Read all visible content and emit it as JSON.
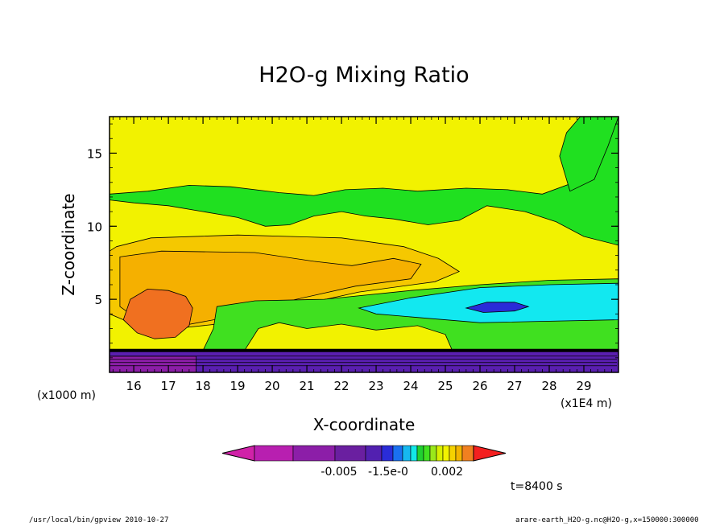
{
  "chart_data": {
    "type": "heatmap",
    "title": "H2O-g Mixing Ratio",
    "xlabel": "X-coordinate",
    "ylabel": "Z-coordinate",
    "x_unit_label": "(x1E4 m)",
    "y_unit_label": "(x1000 m)",
    "xlim": [
      15.3,
      30.0
    ],
    "ylim": [
      0,
      17.5
    ],
    "x_ticks": [
      16,
      17,
      18,
      19,
      20,
      21,
      22,
      23,
      24,
      25,
      26,
      27,
      28,
      29
    ],
    "y_ticks": [
      5,
      10,
      15
    ],
    "colorbar_labels": [
      "-0.005",
      "-1.5e-0",
      "0.002"
    ],
    "colorbar_colors": [
      "#d022a8",
      "#b81fb0",
      "#8c1ea8",
      "#6a1fa0",
      "#5220b0",
      "#2a2cd8",
      "#1a70f0",
      "#16b8f0",
      "#12e8e8",
      "#20d030",
      "#40e020",
      "#9ae81a",
      "#d8f000",
      "#f2f200",
      "#f5d200",
      "#f2b400",
      "#f08020",
      "#f42020"
    ],
    "regions": [
      {
        "color": "#f2f200",
        "level": "background",
        "poly": [
          [
            15.3,
            0.4
          ],
          [
            30,
            0.4
          ],
          [
            30,
            17.5
          ],
          [
            15.3,
            17.5
          ]
        ]
      },
      {
        "color": "#20e020",
        "level": "upper band",
        "poly": [
          [
            15.3,
            12.2
          ],
          [
            16.4,
            12.4
          ],
          [
            17.6,
            12.8
          ],
          [
            18.8,
            12.7
          ],
          [
            20.2,
            12.3
          ],
          [
            21.2,
            12.1
          ],
          [
            22.1,
            12.5
          ],
          [
            23.2,
            12.6
          ],
          [
            24.2,
            12.4
          ],
          [
            25.6,
            12.6
          ],
          [
            26.8,
            12.5
          ],
          [
            27.8,
            12.2
          ],
          [
            28.6,
            12.9
          ],
          [
            29.2,
            14.5
          ],
          [
            29.7,
            16.2
          ],
          [
            30,
            17.5
          ],
          [
            30,
            8.7
          ],
          [
            29,
            9.3
          ],
          [
            28.2,
            10.3
          ],
          [
            27.3,
            11.0
          ],
          [
            26.2,
            11.4
          ],
          [
            25.4,
            10.4
          ],
          [
            24.5,
            10.1
          ],
          [
            23.5,
            10.5
          ],
          [
            22.7,
            10.7
          ],
          [
            22,
            11.0
          ],
          [
            21.2,
            10.7
          ],
          [
            20.5,
            10.1
          ],
          [
            19.8,
            10.0
          ],
          [
            19.0,
            10.6
          ],
          [
            18.0,
            11.0
          ],
          [
            17.0,
            11.4
          ],
          [
            16.0,
            11.6
          ],
          [
            15.3,
            11.8
          ]
        ]
      },
      {
        "color": "#20e020",
        "level": "upper right",
        "poly": [
          [
            28.6,
            12.4
          ],
          [
            29.3,
            13.2
          ],
          [
            29.7,
            15.5
          ],
          [
            30,
            17.5
          ],
          [
            28.9,
            17.5
          ],
          [
            28.5,
            16.4
          ],
          [
            28.3,
            14.8
          ]
        ]
      },
      {
        "color": "#f5c800",
        "level": "mid layer",
        "poly": [
          [
            15.5,
            8.6
          ],
          [
            16.5,
            9.2
          ],
          [
            19.0,
            9.4
          ],
          [
            22.0,
            9.2
          ],
          [
            23.8,
            8.6
          ],
          [
            24.8,
            7.8
          ],
          [
            25.4,
            6.9
          ],
          [
            24.7,
            6.2
          ],
          [
            22.5,
            5.5
          ],
          [
            20.2,
            4.3
          ],
          [
            18.8,
            3.4
          ],
          [
            17.2,
            3.0
          ],
          [
            16.1,
            3.2
          ],
          [
            15.3,
            4.0
          ],
          [
            15.3,
            8.3
          ]
        ]
      },
      {
        "color": "#f5b000",
        "level": "mid core",
        "poly": [
          [
            15.6,
            7.9
          ],
          [
            16.8,
            8.3
          ],
          [
            19.5,
            8.2
          ],
          [
            21.2,
            7.6
          ],
          [
            22.3,
            7.3
          ],
          [
            23.5,
            7.8
          ],
          [
            24.3,
            7.4
          ],
          [
            24.0,
            6.4
          ],
          [
            22.4,
            5.9
          ],
          [
            20.5,
            4.9
          ],
          [
            19.0,
            3.9
          ],
          [
            17.4,
            3.2
          ],
          [
            16.2,
            3.5
          ],
          [
            15.6,
            4.5
          ]
        ]
      },
      {
        "color": "#f07020",
        "level": "max",
        "poly": [
          [
            15.7,
            3.6
          ],
          [
            15.9,
            5.0
          ],
          [
            16.4,
            5.7
          ],
          [
            17.0,
            5.6
          ],
          [
            17.5,
            5.2
          ],
          [
            17.7,
            4.4
          ],
          [
            17.6,
            3.2
          ],
          [
            17.2,
            2.4
          ],
          [
            16.6,
            2.3
          ],
          [
            16.1,
            2.7
          ]
        ]
      },
      {
        "color": "#40e020",
        "level": "lower band",
        "poly": [
          [
            18.4,
            4.5
          ],
          [
            19.5,
            4.9
          ],
          [
            21.5,
            5.0
          ],
          [
            24.0,
            5.6
          ],
          [
            26.0,
            6.0
          ],
          [
            28.0,
            6.3
          ],
          [
            30,
            6.4
          ],
          [
            30,
            1.5
          ],
          [
            18.0,
            1.5
          ],
          [
            18.3,
            3.0
          ]
        ]
      },
      {
        "color": "#12e8f0",
        "level": "moist pocket",
        "poly": [
          [
            22.5,
            4.4
          ],
          [
            24.0,
            5.1
          ],
          [
            26.0,
            5.8
          ],
          [
            28.0,
            6.0
          ],
          [
            30,
            6.1
          ],
          [
            30,
            3.6
          ],
          [
            28,
            3.5
          ],
          [
            26,
            3.4
          ],
          [
            24.5,
            3.7
          ],
          [
            23.0,
            4.0
          ]
        ]
      },
      {
        "color": "#2a2cd8",
        "level": "min pocket",
        "poly": [
          [
            25.6,
            4.4
          ],
          [
            26.2,
            4.8
          ],
          [
            27.0,
            4.8
          ],
          [
            27.4,
            4.5
          ],
          [
            27.0,
            4.2
          ],
          [
            26.1,
            4.1
          ]
        ]
      },
      {
        "color": "#f2f200",
        "level": "low spikes",
        "poly": [
          [
            19.2,
            1.5
          ],
          [
            19.6,
            3.0
          ],
          [
            20.2,
            3.4
          ],
          [
            21.0,
            3.0
          ],
          [
            22.0,
            3.3
          ],
          [
            23.0,
            2.9
          ],
          [
            24.2,
            3.2
          ],
          [
            25.0,
            2.6
          ],
          [
            25.2,
            1.5
          ]
        ]
      },
      {
        "color": "#5a1fb0",
        "level": "surface",
        "poly": [
          [
            15.3,
            0
          ],
          [
            30,
            0
          ],
          [
            30,
            1.5
          ],
          [
            15.3,
            1.5
          ]
        ]
      },
      {
        "color": "#8c1ea8",
        "level": "surface left",
        "poly": [
          [
            15.3,
            0
          ],
          [
            17.8,
            0
          ],
          [
            17.8,
            1.1
          ],
          [
            15.3,
            1.1
          ]
        ]
      }
    ]
  },
  "timestamp_label": "t=8400 s",
  "footer": {
    "left": "/usr/local/bin/gpview   2010-10-27",
    "right": "arare-earth_H2O-g.nc@H2O-g,x=150000:300000"
  }
}
